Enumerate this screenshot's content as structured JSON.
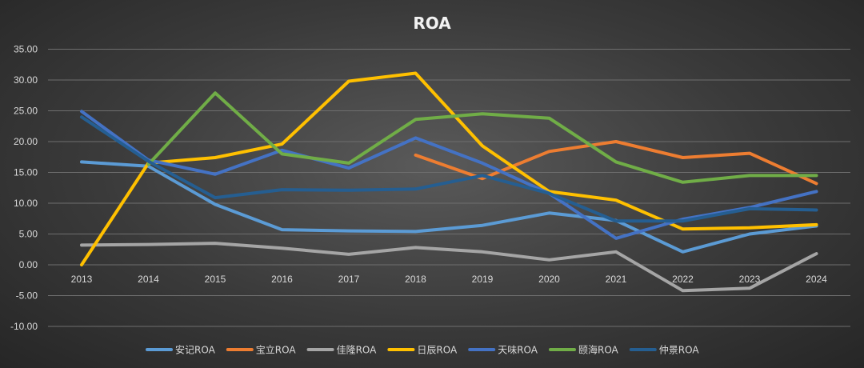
{
  "chart_data": {
    "type": "line",
    "title": "ROA",
    "xlabel": "",
    "ylabel": "",
    "categories": [
      "2013",
      "2014",
      "2015",
      "2016",
      "2017",
      "2018",
      "2019",
      "2020",
      "2021",
      "2022",
      "2023",
      "2024"
    ],
    "y_ticks": [
      "35.00",
      "30.00",
      "25.00",
      "20.00",
      "15.00",
      "10.00",
      "5.00",
      "0.00",
      "-5.00",
      "-10.00"
    ],
    "ylim": [
      -10,
      35
    ],
    "grid": true,
    "legend_position": "bottom",
    "series": [
      {
        "name": "安记ROA",
        "color": "#5b9bd5",
        "values": [
          16.7,
          16.0,
          9.8,
          5.7,
          5.5,
          5.4,
          6.4,
          8.4,
          7.2,
          2.1,
          5.0,
          6.3
        ]
      },
      {
        "name": "宝立ROA",
        "color": "#ed7d31",
        "values": [
          null,
          null,
          null,
          null,
          null,
          17.8,
          14.0,
          18.4,
          20.0,
          17.4,
          18.1,
          13.2
        ]
      },
      {
        "name": "佳隆ROA",
        "color": "#a5a5a5",
        "values": [
          3.2,
          3.3,
          3.5,
          2.7,
          1.7,
          2.8,
          2.1,
          0.8,
          2.1,
          -4.2,
          -3.8,
          1.8
        ]
      },
      {
        "name": "日辰ROA",
        "color": "#ffc000",
        "values": [
          0.0,
          16.5,
          17.4,
          19.6,
          29.8,
          31.1,
          19.3,
          11.9,
          10.5,
          5.8,
          6.0,
          6.5
        ]
      },
      {
        "name": "天味ROA",
        "color": "#4472c4",
        "values": [
          24.9,
          17.0,
          14.7,
          18.6,
          15.7,
          20.6,
          16.5,
          11.6,
          4.3,
          7.4,
          9.3,
          11.9
        ]
      },
      {
        "name": "颐海ROA",
        "color": "#70ad47",
        "values": [
          null,
          16.3,
          27.9,
          18.0,
          16.5,
          23.6,
          24.5,
          23.8,
          16.7,
          13.4,
          14.5,
          14.5
        ]
      },
      {
        "name": "仲景ROA",
        "color": "#255e91",
        "values": [
          24.0,
          16.8,
          10.9,
          12.2,
          12.1,
          12.3,
          14.5,
          11.6,
          7.1,
          7.1,
          9.1,
          8.9
        ]
      }
    ]
  }
}
